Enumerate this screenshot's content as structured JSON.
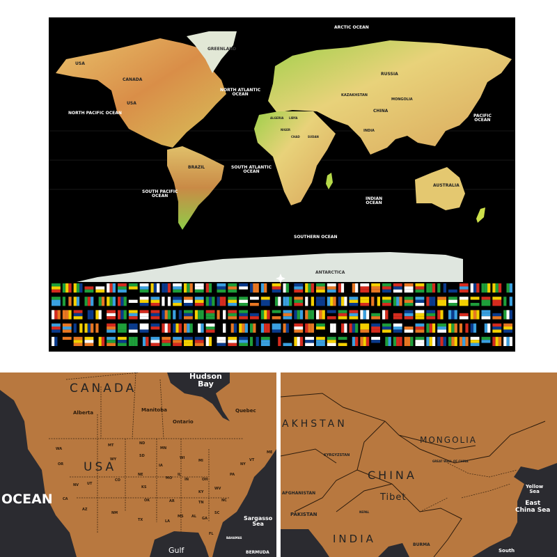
{
  "world_map": {
    "oceans": {
      "arctic": "ARCTIC OCEAN",
      "north_atlantic": [
        "NORTH ATLANTIC",
        "OCEAN"
      ],
      "north_pacific": "NORTH PACIFIC OCEAN",
      "pacific": [
        "PACIFIC",
        "OCEAN"
      ],
      "south_atlantic": [
        "SOUTH ATLANTIC",
        "OCEAN"
      ],
      "south_pacific": [
        "SOUTH PACIFIC",
        "OCEAN"
      ],
      "indian": [
        "INDIAN",
        "OCEAN"
      ],
      "southern": "SOUTHERN OCEAN"
    },
    "countries": {
      "greenland": "GREENLAND",
      "alaska": "USA",
      "canada": "CANADA",
      "usa": "USA",
      "russia": "RUSSIA",
      "kazakhstan": "KAZAKHSTAN",
      "mongolia": "MONGOLIA",
      "china": "CHINA",
      "india": "INDIA",
      "brazil": "BRAZIL",
      "australia": "AUSTRALIA",
      "antarctica": "ANTARCTICA",
      "algeria": "ALGERIA",
      "libya": "LIBYA",
      "niger": "NIGER",
      "chad": "CHAD",
      "sudan": "SUDAN"
    },
    "colors": {
      "ocean": "#000000",
      "land_warm": "#d99a4e",
      "land_yellow": "#e8d27a",
      "land_green": "#9ccc4a",
      "ice": "#dfe6df"
    }
  },
  "flag_strip": {
    "rows": 5,
    "columns": 42
  },
  "detail_north_america": {
    "canada": "CANADA",
    "usa": "USA",
    "hudson_bay": [
      "Hudson",
      "Bay"
    ],
    "ocean": "OCEAN",
    "sargasso": [
      "Sargasso",
      "Sea"
    ],
    "gulf": "Gulf",
    "bermuda": "BERMUDA",
    "bahamas": "BAHAMAS",
    "states": [
      "MT",
      "ND",
      "MN",
      "SD",
      "WY",
      "NE",
      "IA",
      "WI",
      "MI",
      "NV",
      "UT",
      "CO",
      "KS",
      "MO",
      "IL",
      "IN",
      "OH",
      "PA",
      "NY",
      "CA",
      "AZ",
      "NM",
      "OK",
      "AR",
      "TX",
      "LA",
      "MS",
      "AL",
      "GA",
      "TN",
      "KY",
      "WV",
      "NC",
      "SC",
      "FL",
      "OR",
      "WA",
      "ME",
      "VT"
    ],
    "provinces": [
      "Alberta",
      "Manitoba",
      "Ontario",
      "Quebec"
    ],
    "colors": {
      "land": "#b8783f",
      "water": "#2b2b30"
    }
  },
  "detail_asia": {
    "kazakhstan": "AKHSTAN",
    "mongolia": "MONGOLIA",
    "china": "CHINA",
    "tibet": "Tibet",
    "india": "INDIA",
    "pakistan": "PAKISTAN",
    "afghanistan": "AFGHANISTAN",
    "kyrgyzstan": "KYRGYZSTAN",
    "nepal": "NEPAL",
    "burma": "BURMA",
    "great_wall": "GREAT WALL OF CHINA",
    "yellow_sea": [
      "Yellow",
      "Sea"
    ],
    "east_china_sea": [
      "East",
      "China Sea"
    ],
    "south": "South"
  }
}
